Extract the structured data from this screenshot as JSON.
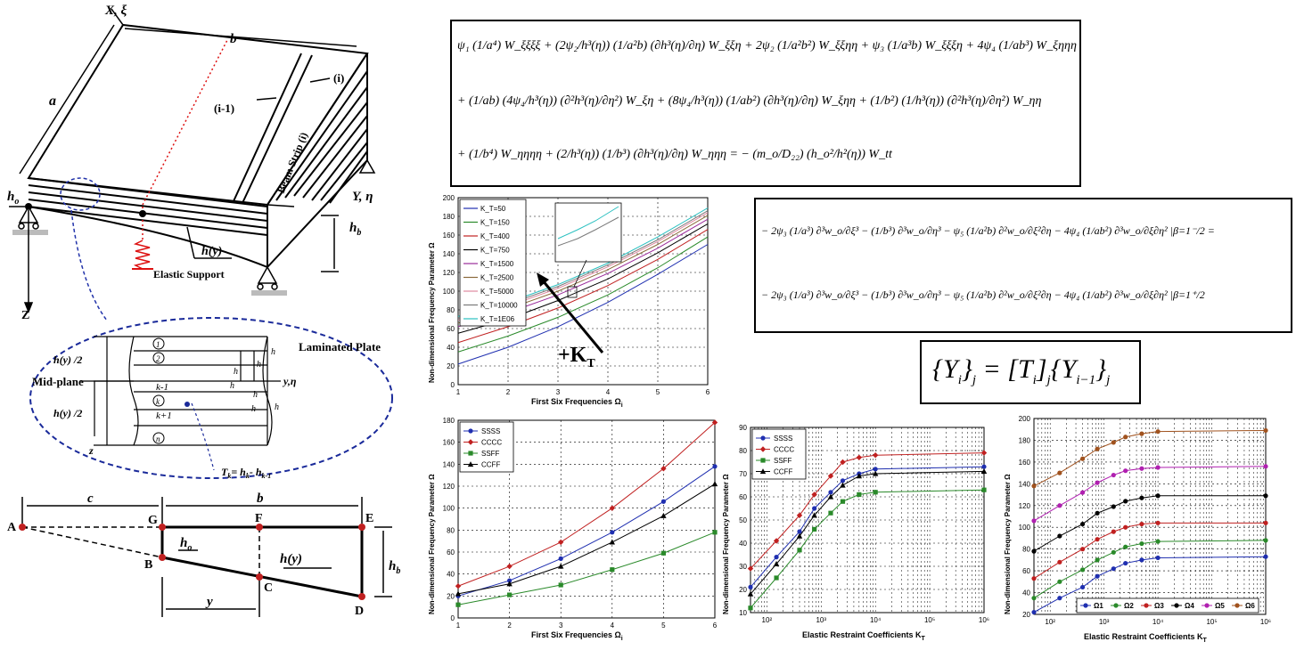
{
  "diagram": {
    "axis_x": "X, ξ",
    "axis_y": "Y, η",
    "axis_z": "Z",
    "b_label": "b",
    "a_label": "a",
    "ho_label": "h",
    "ho_sub": "o",
    "hb_label": "h",
    "hb_sub": "b",
    "strip_i": "(i)",
    "strip_i1": "(i-1)",
    "beam_strip": "Beam Strip (i)",
    "hy_label": "h(y)",
    "elastic_support": "Elastic Support"
  },
  "laminate": {
    "title": "Laminated Plate",
    "midplane": "Mid-plane",
    "hy2_top": "h(y) /2",
    "hy2_bot": "h(y) /2",
    "z_label": "z",
    "y_eta": "y,η",
    "layers": [
      "1",
      "2",
      "k",
      "n"
    ],
    "k_minus": "k-1",
    "k_plus": "k+1",
    "h_labels": [
      "h",
      "h",
      "h",
      "h",
      "h",
      "h",
      "h",
      "h"
    ],
    "tk_formula": "T",
    "tk_rest": "= h",
    "tk_minus": "- h"
  },
  "geometry": {
    "A": "A",
    "B": "B",
    "C": "C",
    "D": "D",
    "E": "E",
    "F": "F",
    "G": "G",
    "c": "c",
    "b": "b",
    "y": "y",
    "ho": "h",
    "ho_sub": "o",
    "hy": "h(y)",
    "hb": "h",
    "hb_sub": "b"
  },
  "equations": {
    "eq1_lines": [
      "ψ₁ (1/a⁴) W_ξξξξ + (2ψ₂/h³(η)) (1/a²b) (∂h³(η)/∂η) W_ξξη + 2ψ₂ (1/a²b²) W_ξξηη + ψ₃ (1/a³b) W_ξξξη + 4ψ₄ (1/ab³) W_ξηηη",
      "+ (1/ab) (4ψ₄/h³(η)) (∂²h³(η)/∂η²) W_ξη + (8ψ₄/h³(η)) (1/ab²) (∂h³(η)/∂η) W_ξηη + (1/b²) (1/h³(η)) (∂²h³(η)/∂η²) W_ηη",
      "+ (1/b⁴) W_ηηηη + (2/h³(η)) (1/b³) (∂h³(η)/∂η) W_ηηη = − (m_o/D₂₂) (h_o²/h²(η)) W_tt"
    ],
    "eq2_lines": [
      "− 2ψ₃ (1/a³) ∂³w_o/∂ξ³ − (1/b³) ∂³w_o/∂η³ − ψ₅ (1/a²b) ∂²w_o/∂ξ²∂η − 4ψ₄ (1/ab²) ∂³w_o/∂ξ∂η² |β=1⁻/2 =",
      "− 2ψ₃ (1/a³) ∂³w_o/∂ξ³ − (1/b³) ∂³w_o/∂η³ − ψ₅ (1/a²b) ∂²w_o/∂ξ²∂η − 4ψ₄ (1/ab²) ∂³w_o/∂ξ∂η² |β=1⁺/2"
    ],
    "eq3": "{Y_i}_j = [T_i]_j {Y_i−1}_j",
    "eq3_parts": [
      "{Y",
      "i",
      "}",
      "j",
      " = [T",
      "i",
      "]",
      "j",
      "{Y",
      "i−1",
      "}",
      "j"
    ]
  },
  "annotations": {
    "kt_arrow": "+K",
    "kt_sub": "T"
  },
  "chart_data": [
    {
      "type": "line",
      "xlabel": "First Six Frequencies Ω",
      "xlabel_sub": "i",
      "ylabel": "Non-dimensional Frequency Parameter Ω",
      "xlim": [
        1,
        6
      ],
      "ylim": [
        0,
        200
      ],
      "xticks": [
        1,
        2,
        3,
        4,
        5,
        6
      ],
      "yticks": [
        0,
        20,
        40,
        60,
        80,
        100,
        120,
        140,
        160,
        180,
        200
      ],
      "legend": "top-left",
      "grid": true,
      "series": [
        {
          "name": "K_T=50",
          "color": "#1f2fb0",
          "x": [
            1,
            2,
            3,
            4,
            5,
            6
          ],
          "values": [
            22,
            40,
            62,
            88,
            118,
            150
          ]
        },
        {
          "name": "K_T=150",
          "color": "#2a8a2a",
          "x": [
            1,
            2,
            3,
            4,
            5,
            6
          ],
          "values": [
            35,
            52,
            72,
            96,
            125,
            158
          ]
        },
        {
          "name": "K_T=400",
          "color": "#c02020",
          "x": [
            1,
            2,
            3,
            4,
            5,
            6
          ],
          "values": [
            45,
            62,
            82,
            106,
            134,
            166
          ]
        },
        {
          "name": "K_T=750",
          "color": "#000000",
          "x": [
            1,
            2,
            3,
            4,
            5,
            6
          ],
          "values": [
            55,
            70,
            90,
            113,
            141,
            172
          ]
        },
        {
          "name": "K_T=1500",
          "color": "#9a2a9a",
          "x": [
            1,
            2,
            3,
            4,
            5,
            6
          ],
          "values": [
            62,
            77,
            96,
            119,
            146,
            177
          ]
        },
        {
          "name": "K_T=2500",
          "color": "#8a6a3a",
          "x": [
            1,
            2,
            3,
            4,
            5,
            6
          ],
          "values": [
            66,
            81,
            100,
            123,
            150,
            181
          ]
        },
        {
          "name": "K_T=5000",
          "color": "#e08aa0",
          "x": [
            1,
            2,
            3,
            4,
            5,
            6
          ],
          "values": [
            69,
            84,
            103,
            126,
            153,
            184
          ]
        },
        {
          "name": "K_T=10000",
          "color": "#7a7a7a",
          "x": [
            1,
            2,
            3,
            4,
            5,
            6
          ],
          "values": [
            71,
            86,
            105,
            128,
            155,
            186
          ]
        },
        {
          "name": "K_T=1E06",
          "color": "#2ac0c0",
          "x": [
            1,
            2,
            3,
            4,
            5,
            6
          ],
          "values": [
            73,
            88,
            107,
            130,
            158,
            189
          ]
        }
      ]
    },
    {
      "type": "line",
      "xlabel": "First Six Frequencies Ω",
      "xlabel_sub": "i",
      "ylabel": "Non-dimensional Frequency Parameter Ω",
      "xlim": [
        1,
        6
      ],
      "ylim": [
        0,
        180
      ],
      "xticks": [
        1,
        2,
        3,
        4,
        5,
        6
      ],
      "yticks": [
        0,
        20,
        40,
        60,
        80,
        100,
        120,
        140,
        160,
        180
      ],
      "legend": "top-left",
      "grid": true,
      "series": [
        {
          "name": "SSSS",
          "color": "#1f2fb0",
          "marker": "circle",
          "x": [
            1,
            2,
            3,
            4,
            5,
            6
          ],
          "values": [
            20,
            34,
            54,
            78,
            106,
            138
          ]
        },
        {
          "name": "CCCC",
          "color": "#c02020",
          "marker": "diamond",
          "x": [
            1,
            2,
            3,
            4,
            5,
            6
          ],
          "values": [
            29,
            47,
            69,
            100,
            136,
            178
          ]
        },
        {
          "name": "SSFF",
          "color": "#2a8a2a",
          "marker": "square",
          "x": [
            1,
            2,
            3,
            4,
            5,
            6
          ],
          "values": [
            12,
            21,
            30,
            44,
            59,
            78
          ]
        },
        {
          "name": "CCFF",
          "color": "#000000",
          "marker": "triangle",
          "x": [
            1,
            2,
            3,
            4,
            5,
            6
          ],
          "values": [
            22,
            31,
            47,
            69,
            93,
            122
          ]
        }
      ]
    },
    {
      "type": "line",
      "xscale": "log",
      "xlabel": "Elastic Restraint Coefficients K",
      "xlabel_sub": "T",
      "ylabel": "Non-dimensional Frequency Parameter Ω",
      "xlim": [
        50,
        1000000
      ],
      "ylim": [
        10,
        90
      ],
      "xticks": [
        "10²",
        "10³",
        "10⁴",
        "10⁵",
        "10⁶"
      ],
      "yticks": [
        10,
        20,
        30,
        40,
        50,
        60,
        70,
        80,
        90
      ],
      "legend": "top-left",
      "grid": true,
      "series": [
        {
          "name": "SSSS",
          "color": "#1f2fb0",
          "marker": "circle",
          "x": [
            50,
            150,
            400,
            750,
            1500,
            2500,
            5000,
            10000,
            1000000
          ],
          "values": [
            21,
            34,
            45,
            55,
            62,
            67,
            70,
            72,
            73
          ]
        },
        {
          "name": "CCCC",
          "color": "#c02020",
          "marker": "diamond",
          "x": [
            50,
            150,
            400,
            750,
            1500,
            2500,
            5000,
            10000,
            1000000
          ],
          "values": [
            29,
            41,
            52,
            61,
            69,
            75,
            77,
            78,
            79
          ]
        },
        {
          "name": "SSFF",
          "color": "#2a8a2a",
          "marker": "square",
          "x": [
            50,
            150,
            400,
            750,
            1500,
            2500,
            5000,
            10000,
            1000000
          ],
          "values": [
            12,
            25,
            37,
            46,
            53,
            58,
            61,
            62,
            63
          ]
        },
        {
          "name": "CCFF",
          "color": "#000000",
          "marker": "triangle",
          "x": [
            50,
            150,
            400,
            750,
            1500,
            2500,
            5000,
            10000,
            1000000
          ],
          "values": [
            18,
            31,
            43,
            52,
            60,
            65,
            69,
            70,
            71
          ]
        }
      ]
    },
    {
      "type": "line",
      "xscale": "log",
      "xlabel": "Elastic Restraint Coefficients K",
      "xlabel_sub": "T",
      "ylabel": "Non-dimensional Frequency Parameter Ω",
      "xlim": [
        50,
        1000000
      ],
      "ylim": [
        20,
        200
      ],
      "xticks": [
        "10²",
        "10³",
        "10⁴",
        "10⁵",
        "10⁶"
      ],
      "yticks": [
        20,
        40,
        60,
        80,
        100,
        120,
        140,
        160,
        180,
        200
      ],
      "legend": "bottom",
      "grid": true,
      "series": [
        {
          "name": "Ω1",
          "color": "#1f2fb0",
          "marker": "circle",
          "x": [
            50,
            150,
            400,
            750,
            1500,
            2500,
            5000,
            10000,
            1000000
          ],
          "values": [
            22,
            35,
            45,
            55,
            62,
            67,
            70,
            72,
            73
          ]
        },
        {
          "name": "Ω2",
          "color": "#2a8a2a",
          "marker": "circle",
          "x": [
            50,
            150,
            400,
            750,
            1500,
            2500,
            5000,
            10000,
            1000000
          ],
          "values": [
            35,
            50,
            61,
            70,
            77,
            82,
            85,
            87,
            88
          ]
        },
        {
          "name": "Ω3",
          "color": "#c02020",
          "marker": "circle",
          "x": [
            50,
            150,
            400,
            750,
            1500,
            2500,
            5000,
            10000,
            1000000
          ],
          "values": [
            53,
            68,
            80,
            89,
            96,
            100,
            103,
            104,
            104
          ]
        },
        {
          "name": "Ω4",
          "color": "#000000",
          "marker": "circle",
          "x": [
            50,
            150,
            400,
            750,
            1500,
            2500,
            5000,
            10000,
            1000000
          ],
          "values": [
            78,
            92,
            103,
            113,
            119,
            124,
            127,
            129,
            129
          ]
        },
        {
          "name": "Ω5",
          "color": "#b020b0",
          "marker": "circle",
          "x": [
            50,
            150,
            400,
            750,
            1500,
            2500,
            5000,
            10000,
            1000000
          ],
          "values": [
            106,
            120,
            132,
            141,
            148,
            152,
            154,
            155,
            156
          ]
        },
        {
          "name": "Ω6",
          "color": "#a0521e",
          "marker": "circle",
          "x": [
            50,
            150,
            400,
            750,
            1500,
            2500,
            5000,
            10000,
            1000000
          ],
          "values": [
            138,
            150,
            163,
            172,
            178,
            183,
            186,
            188,
            189
          ]
        }
      ]
    }
  ]
}
